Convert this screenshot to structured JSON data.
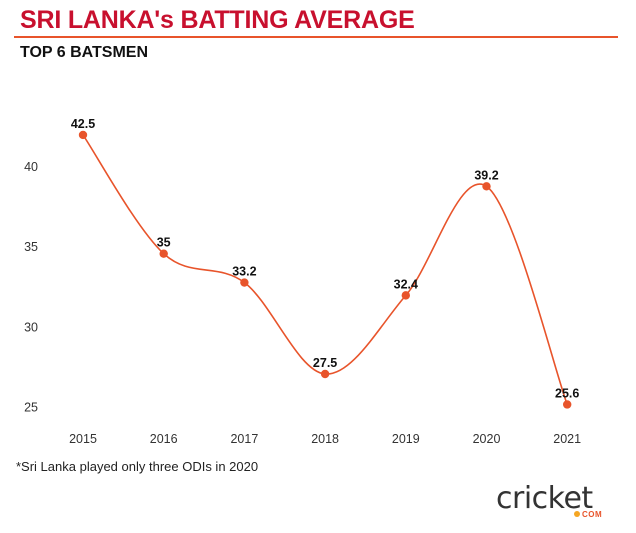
{
  "header": {
    "title": "SRI LANKA's BATTING AVERAGE",
    "subtitle": "TOP 6 BATSMEN"
  },
  "footnote": "*Sri Lanka played only three ODIs in 2020",
  "logo": {
    "word": "cricket",
    "suffix": "COM"
  },
  "colors": {
    "title": "#c8102e",
    "line": "#e8542b",
    "point": "#e8542b"
  },
  "chart_data": {
    "type": "line",
    "title": "SRI LANKA's BATTING AVERAGE",
    "subtitle": "TOP 6 BATSMEN",
    "xlabel": "",
    "ylabel": "",
    "categories": [
      "2015",
      "2016",
      "2017",
      "2018",
      "2019",
      "2020",
      "2021"
    ],
    "values": [
      42.5,
      35,
      33.2,
      27.5,
      32.4,
      39.2,
      25.6
    ],
    "data_labels": [
      "42.5",
      "35",
      "33.2",
      "27.5",
      "32.4",
      "39.2",
      "25.6"
    ],
    "plotted_values": [
      42,
      34.6,
      32.8,
      27.1,
      32,
      38.8,
      25.2
    ],
    "yticks": [
      25,
      30,
      35,
      40
    ],
    "ylim": [
      22.3,
      45.3
    ],
    "grid": false,
    "legend": "none",
    "smooth": true
  }
}
